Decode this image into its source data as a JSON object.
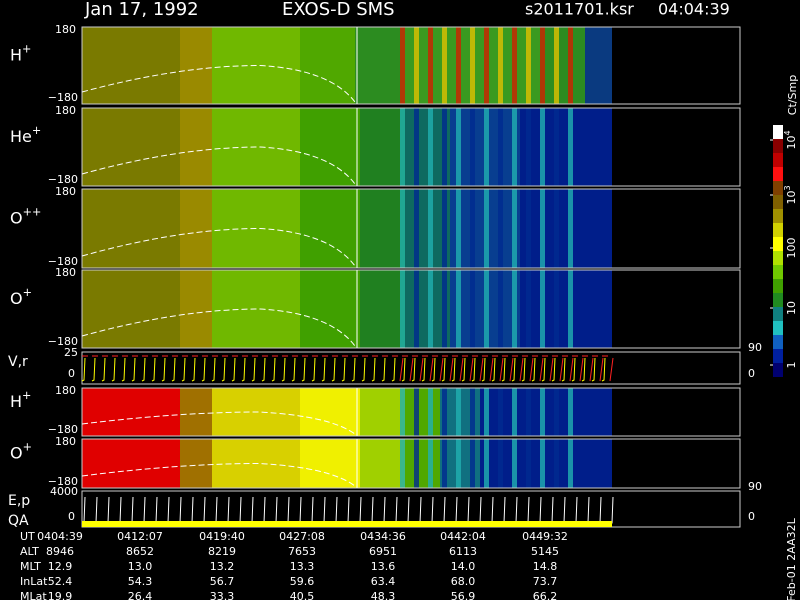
{
  "header": {
    "date": "Jan 17, 1992",
    "instrument": "EXOS-D SMS",
    "file": "s2011701.ksr",
    "time": "04:04:39"
  },
  "panels": [
    {
      "label": "H",
      "sup": "+",
      "ytop": "180",
      "ybottom": "−180"
    },
    {
      "label": "He",
      "sup": "+",
      "ytop": "180",
      "ybottom": "−180"
    },
    {
      "label": "O",
      "sup": "++",
      "ytop": "180",
      "ybottom": "−180"
    },
    {
      "label": "O",
      "sup": "+",
      "ytop": "180",
      "ybottom": "−180"
    },
    {
      "label": "H",
      "sup": "+",
      "ytop": "180",
      "ybottom": "−180"
    },
    {
      "label": "O",
      "sup": "+",
      "ytop": "180",
      "ybottom": "−180"
    }
  ],
  "lineplots": [
    {
      "label": "V,r",
      "ytop": "25",
      "ybottom": "0",
      "right_top": "90",
      "right_bottom": "0"
    },
    {
      "label": "E,p",
      "label2": "QA",
      "ytop": "4000",
      "ybottom": "0",
      "right_top": "90",
      "right_bottom": "0"
    }
  ],
  "colorbar": {
    "title": "Ct/Smp",
    "ticks": [
      {
        "base": "10",
        "sup": "4"
      },
      {
        "base": "10",
        "sup": "3"
      },
      {
        "base": "100"
      },
      {
        "base": "10"
      },
      {
        "base": "1"
      }
    ]
  },
  "table": {
    "rows": [
      {
        "label": "UT",
        "values": [
          "0404:39",
          "0412:07",
          "0419:40",
          "0427:08",
          "0434:36",
          "0442:04",
          "0449:32"
        ]
      },
      {
        "label": "ALT",
        "values": [
          "8946",
          "8652",
          "8219",
          "7653",
          "6951",
          "6113",
          "5145"
        ]
      },
      {
        "label": "MLT",
        "values": [
          "12.9",
          "13.0",
          "13.2",
          "13.3",
          "13.6",
          "14.0",
          "14.8"
        ]
      },
      {
        "label": "InLat",
        "values": [
          "52.4",
          "54.3",
          "56.7",
          "59.6",
          "63.4",
          "68.0",
          "73.7"
        ]
      },
      {
        "label": "MLat",
        "values": [
          "19.9",
          "26.4",
          "33.3",
          "40.5",
          "48.3",
          "56.9",
          "66.2"
        ]
      }
    ]
  },
  "footer": "Feb-01 2AA32L"
}
